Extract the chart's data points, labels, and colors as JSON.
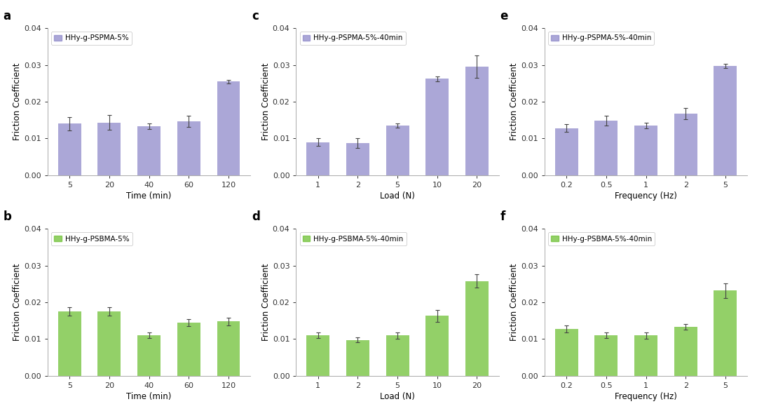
{
  "subplots": [
    {
      "label": "a",
      "legend": "HHy-g-PSPMA-5%",
      "color": "#8b85c8",
      "x_labels": [
        "5",
        "20",
        "40",
        "60",
        "120"
      ],
      "x_title": "Time (min)",
      "y_title": "Friction Coefficient",
      "values": [
        0.014,
        0.0143,
        0.0133,
        0.0146,
        0.0255
      ],
      "errors": [
        0.0018,
        0.002,
        0.0008,
        0.0015,
        0.0005
      ],
      "ylim": [
        0,
        0.04
      ]
    },
    {
      "label": "b",
      "legend": "HHy-g-PSBMA-5%",
      "color": "#6abf2e",
      "x_labels": [
        "5",
        "20",
        "40",
        "60",
        "120"
      ],
      "x_title": "Time (min)",
      "y_title": "Friction Coefficient",
      "values": [
        0.0175,
        0.0175,
        0.011,
        0.0145,
        0.0148
      ],
      "errors": [
        0.0012,
        0.0012,
        0.0008,
        0.001,
        0.001
      ],
      "ylim": [
        0,
        0.04
      ]
    },
    {
      "label": "c",
      "legend": "HHy-g-PSPMA-5%-40min",
      "color": "#8b85c8",
      "x_labels": [
        "1",
        "2",
        "5",
        "10",
        "20"
      ],
      "x_title": "Load (N)",
      "y_title": "Friction Coefficient",
      "values": [
        0.009,
        0.0087,
        0.0135,
        0.0262,
        0.0295
      ],
      "errors": [
        0.001,
        0.0013,
        0.0006,
        0.0006,
        0.003
      ],
      "ylim": [
        0,
        0.04
      ]
    },
    {
      "label": "d",
      "legend": "HHy-g-PSBMA-5%-40min",
      "color": "#6abf2e",
      "x_labels": [
        "1",
        "2",
        "5",
        "10",
        "20"
      ],
      "x_title": "Load (N)",
      "y_title": "Friction Coefficient",
      "values": [
        0.011,
        0.0098,
        0.011,
        0.0163,
        0.0258
      ],
      "errors": [
        0.0008,
        0.0007,
        0.0009,
        0.0016,
        0.0018
      ],
      "ylim": [
        0,
        0.04
      ]
    },
    {
      "label": "e",
      "legend": "HHy-g-PSPMA-5%-40min",
      "color": "#8b85c8",
      "x_labels": [
        "0.2",
        "0.5",
        "1",
        "2",
        "5"
      ],
      "x_title": "Frequency (Hz)",
      "y_title": "Friction Coefficient",
      "values": [
        0.0128,
        0.0148,
        0.0135,
        0.0168,
        0.0297
      ],
      "errors": [
        0.001,
        0.0013,
        0.0008,
        0.0015,
        0.0006
      ],
      "ylim": [
        0,
        0.04
      ]
    },
    {
      "label": "f",
      "legend": "HHy-g-PSBMA-5%-40min",
      "color": "#6abf2e",
      "x_labels": [
        "0.2",
        "0.5",
        "1",
        "2",
        "5"
      ],
      "x_title": "Frequency (Hz)",
      "y_title": "Friction Coefficient",
      "values": [
        0.0128,
        0.011,
        0.011,
        0.0133,
        0.0232
      ],
      "errors": [
        0.001,
        0.0008,
        0.0009,
        0.0007,
        0.002
      ],
      "ylim": [
        0,
        0.04
      ]
    }
  ],
  "background_color": "#ffffff",
  "bar_width": 0.58,
  "axis_label_fontsize": 8.5,
  "legend_fontsize": 7.5,
  "tick_fontsize": 8,
  "panel_label_fontsize": 12
}
